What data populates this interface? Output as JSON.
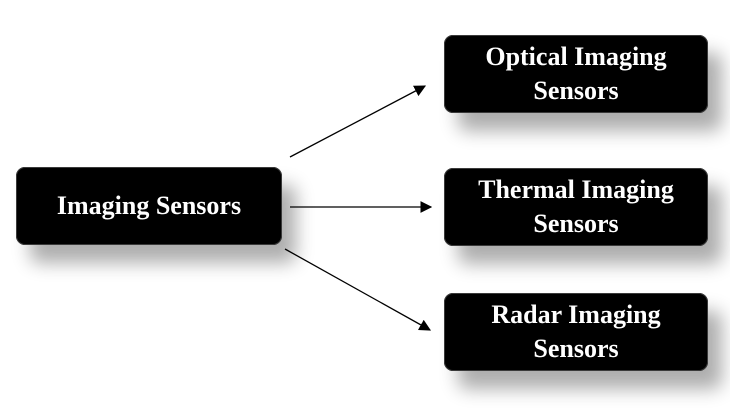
{
  "root": {
    "label": "Imaging Sensors"
  },
  "children": [
    {
      "line1": "Optical Imaging",
      "line2": "Sensors"
    },
    {
      "line1": "Thermal Imaging",
      "line2": "Sensors"
    },
    {
      "line1": "Radar Imaging",
      "line2": "Sensors"
    }
  ],
  "colors": {
    "box": "#000000",
    "text": "#ffffff",
    "arrow": "#000000"
  }
}
